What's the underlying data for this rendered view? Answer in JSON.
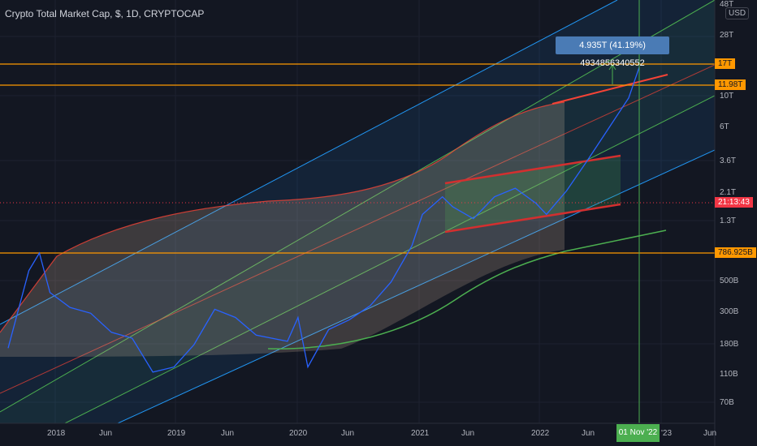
{
  "header": {
    "title": "Crypto Total Market Cap, $, 1D, CRYPTOCAP",
    "currency": "USD",
    "measure_label": "4.935T (41.19%) 4934856340552"
  },
  "y_axis": {
    "ticks": [
      "48T",
      "28T",
      "10T",
      "6T",
      "3.6T",
      "2.1T",
      "1.3T",
      "500B",
      "300B",
      "180B",
      "110B",
      "70B"
    ]
  },
  "price_tags": {
    "level_17t": "17T",
    "level_11_98t": "11.98T",
    "countdown": "21:13:43",
    "level_786b": "786.925B"
  },
  "x_axis": {
    "ticks": [
      "2018",
      "Jun",
      "2019",
      "Jun",
      "2020",
      "Jun",
      "2021",
      "Jun",
      "2022",
      "Jun",
      "'23",
      "Jun"
    ],
    "crosshair_label": "01 Nov '22"
  },
  "colors": {
    "background": "#131722",
    "channel_blue": "#2196f3",
    "channel_green": "#4caf50",
    "channel_red": "#f44336",
    "horizontal_orange": "#ff9800",
    "tag_orange": "#ff9800",
    "tag_red": "#f23645",
    "tag_green": "#4caf50",
    "price_line": "#2962ff"
  },
  "chart_data": {
    "type": "line",
    "title": "Crypto Total Market Cap, $, 1D, CRYPTOCAP",
    "y_scale": "log",
    "ylim": [
      "50B",
      "48T"
    ],
    "horizontal_levels": [
      "17T",
      "11.98T",
      "786.925B"
    ],
    "series": [
      {
        "x": [
          "2017-10",
          "2017-12",
          "2018-01",
          "2018-02",
          "2018-04",
          "2018-06",
          "2018-08",
          "2018-10",
          "2018-12",
          "2019-02",
          "2019-04",
          "2019-06",
          "2019-08",
          "2019-10",
          "2020-01",
          "2020-02",
          "2020-03",
          "2020-05",
          "2020-07",
          "2020-09",
          "2020-11",
          "2021-01",
          "2021-02",
          "2021-04",
          "2021-05",
          "2021-07",
          "2021-09",
          "2021-11",
          "2022-01",
          "2022-02",
          "2022-03",
          "2022-04",
          "2022-06",
          "2022-08",
          "2022-10",
          "2022-11"
        ],
        "values": [
          170,
          600,
          800,
          420,
          330,
          300,
          220,
          200,
          115,
          125,
          180,
          320,
          280,
          210,
          190,
          280,
          125,
          230,
          270,
          340,
          500,
          900,
          1500,
          2000,
          1700,
          1400,
          2000,
          2300,
          1800,
          1500,
          1800,
          2200,
          3600,
          6000,
          10000,
          16500
        ]
      }
    ]
  }
}
